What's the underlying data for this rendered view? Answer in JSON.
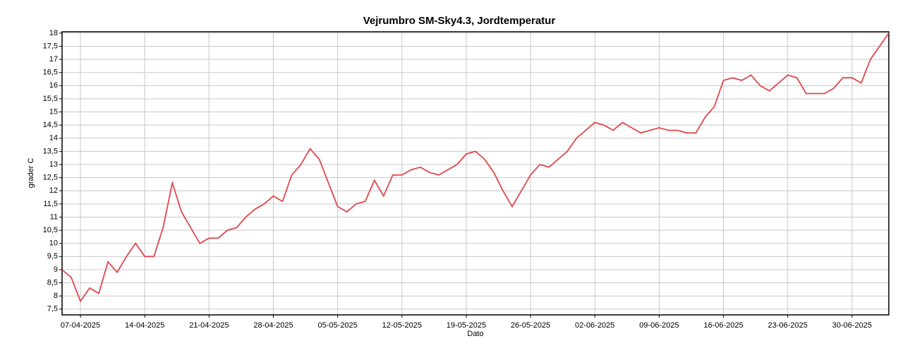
{
  "chart_data": {
    "type": "line",
    "title": "Vejrumbro SM-Sky4.3, Jordtemperatur",
    "xlabel": "Dato",
    "ylabel": "grader C",
    "x": [
      "05-04-2025",
      "06-04-2025",
      "07-04-2025",
      "08-04-2025",
      "09-04-2025",
      "10-04-2025",
      "11-04-2025",
      "12-04-2025",
      "13-04-2025",
      "14-04-2025",
      "15-04-2025",
      "16-04-2025",
      "17-04-2025",
      "18-04-2025",
      "19-04-2025",
      "20-04-2025",
      "21-04-2025",
      "22-04-2025",
      "23-04-2025",
      "24-04-2025",
      "25-04-2025",
      "26-04-2025",
      "27-04-2025",
      "28-04-2025",
      "29-04-2025",
      "30-04-2025",
      "01-05-2025",
      "02-05-2025",
      "03-05-2025",
      "04-05-2025",
      "05-05-2025",
      "06-05-2025",
      "07-05-2025",
      "08-05-2025",
      "09-05-2025",
      "10-05-2025",
      "11-05-2025",
      "12-05-2025",
      "13-05-2025",
      "14-05-2025",
      "15-05-2025",
      "16-05-2025",
      "17-05-2025",
      "18-05-2025",
      "19-05-2025",
      "20-05-2025",
      "21-05-2025",
      "22-05-2025",
      "23-05-2025",
      "24-05-2025",
      "25-05-2025",
      "26-05-2025",
      "27-05-2025",
      "28-05-2025",
      "29-05-2025",
      "30-05-2025",
      "31-05-2025",
      "01-06-2025",
      "02-06-2025",
      "03-06-2025",
      "04-06-2025",
      "05-06-2025",
      "06-06-2025",
      "07-06-2025",
      "08-06-2025",
      "09-06-2025",
      "10-06-2025",
      "11-06-2025",
      "12-06-2025",
      "13-06-2025",
      "14-06-2025",
      "15-06-2025",
      "16-06-2025",
      "17-06-2025",
      "18-06-2025",
      "19-06-2025",
      "20-06-2025",
      "21-06-2025",
      "22-06-2025",
      "23-06-2025",
      "24-06-2025",
      "25-06-2025",
      "26-06-2025",
      "27-06-2025",
      "28-06-2025",
      "29-06-2025",
      "30-06-2025",
      "01-07-2025",
      "02-07-2025",
      "03-07-2025",
      "04-07-2025"
    ],
    "series": [
      {
        "name": "Jordtemperatur",
        "color": "#e0474c",
        "values": [
          9.0,
          8.7,
          7.8,
          8.3,
          8.1,
          9.3,
          8.9,
          9.5,
          10.0,
          9.5,
          9.5,
          10.6,
          12.3,
          11.2,
          10.6,
          10.0,
          10.2,
          10.2,
          10.5,
          10.6,
          11.0,
          11.3,
          11.5,
          11.8,
          11.6,
          12.6,
          13.0,
          13.6,
          13.2,
          12.3,
          11.4,
          11.2,
          11.5,
          11.6,
          12.4,
          11.8,
          12.6,
          12.6,
          12.8,
          12.9,
          12.7,
          12.6,
          12.8,
          13.0,
          13.4,
          13.5,
          13.2,
          12.7,
          12.0,
          11.4,
          12.0,
          12.6,
          13.0,
          12.9,
          13.2,
          13.5,
          14.0,
          14.3,
          14.6,
          14.5,
          14.3,
          14.6,
          14.4,
          14.2,
          14.3,
          14.4,
          14.3,
          14.3,
          14.2,
          14.2,
          14.8,
          15.2,
          16.2,
          16.3,
          16.2,
          16.4,
          16.0,
          15.8,
          16.1,
          16.4,
          16.3,
          15.7,
          15.7,
          15.7,
          15.9,
          16.3,
          16.3,
          16.1,
          17.0,
          17.5,
          18.0
        ]
      }
    ],
    "xlim": [
      "05-04-2025",
      "04-07-2025"
    ],
    "xticks": [
      "07-04-2025",
      "14-04-2025",
      "21-04-2025",
      "28-04-2025",
      "05-05-2025",
      "12-05-2025",
      "19-05-2025",
      "26-05-2025",
      "02-06-2025",
      "09-06-2025",
      "16-06-2025",
      "23-06-2025",
      "30-06-2025"
    ],
    "ylim": [
      7.28,
      18.05
    ],
    "yticks": [
      {
        "value": 7.5,
        "label": "7,5"
      },
      8,
      {
        "value": 8.5,
        "label": "8,5"
      },
      9,
      {
        "value": 9.5,
        "label": "9,5"
      },
      10,
      {
        "value": 10.5,
        "label": "10,5"
      },
      11,
      {
        "value": 11.5,
        "label": "11,5"
      },
      12,
      {
        "value": 12.5,
        "label": "12,5"
      },
      13,
      {
        "value": 13.5,
        "label": "13,5"
      },
      14,
      {
        "value": 14.5,
        "label": "14,5"
      },
      15,
      {
        "value": 15.5,
        "label": "15,5"
      },
      16,
      {
        "value": 16.5,
        "label": "16,5"
      },
      17,
      {
        "value": 17.5,
        "label": "17,5"
      },
      18
    ],
    "grid": true
  }
}
